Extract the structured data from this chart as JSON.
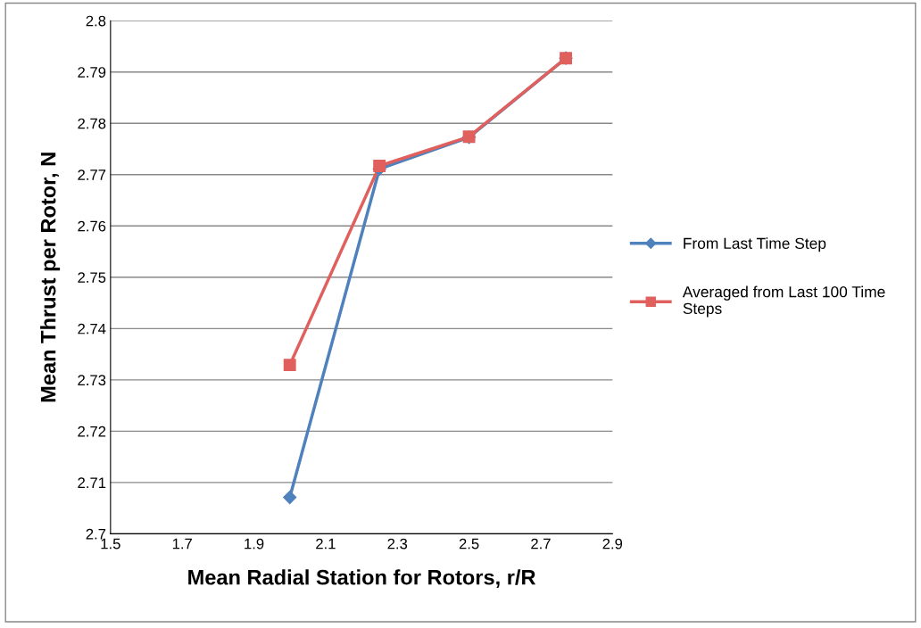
{
  "chart_data": {
    "type": "line",
    "xlabel": "Mean Radial Station for Rotors, r/R",
    "ylabel": "Mean Thrust per Rotor, N",
    "xlim": [
      1.5,
      2.9
    ],
    "xticks": [
      1.5,
      1.7,
      1.9,
      2.1,
      2.3,
      2.5,
      2.7,
      2.9
    ],
    "ylim": [
      2.7,
      2.8
    ],
    "yticks": [
      2.7,
      2.71,
      2.72,
      2.73,
      2.74,
      2.75,
      2.76,
      2.77,
      2.78,
      2.79,
      2.8
    ],
    "grid": "y",
    "legend": "right",
    "line_style": "solid",
    "series": [
      {
        "name": "From Last Time Step",
        "color": "#4f81bd",
        "marker": "diamond",
        "x": [
          2.0,
          2.25,
          2.5,
          2.77
        ],
        "values": [
          2.7071,
          2.7711,
          2.7773,
          2.7927
        ]
      },
      {
        "name": "Averaged from Last 100 Time Steps",
        "color": "#e0605e",
        "marker": "square",
        "x": [
          2.0,
          2.25,
          2.5,
          2.77
        ],
        "values": [
          2.7329,
          2.7717,
          2.7774,
          2.7927
        ]
      }
    ]
  }
}
